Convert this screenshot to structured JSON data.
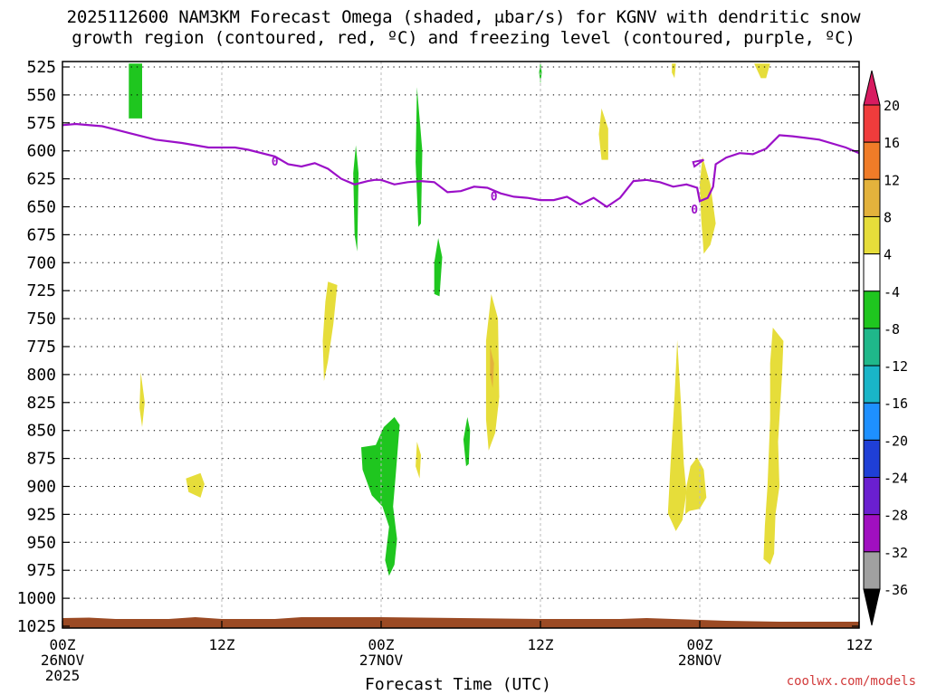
{
  "chart_data": {
    "type": "heatmap",
    "title_line1": "2025112600 NAM3KM Forecast Omega (shaded, μbar/s) for KGNV with dendritic snow",
    "title_line2": "growth region (contoured, red, ºC) and freezing level (contoured, purple, ºC)",
    "xlabel": "Forecast Time (UTC)",
    "credit": "coolwx.com/models",
    "y_axis": {
      "ticks": [
        525,
        550,
        575,
        600,
        625,
        650,
        675,
        700,
        725,
        750,
        775,
        800,
        825,
        850,
        875,
        900,
        925,
        950,
        975,
        1000,
        1025
      ],
      "range": [
        525,
        1025
      ],
      "unit": "hPa"
    },
    "x_axis": {
      "range_hours": [
        0,
        60
      ],
      "ticks": [
        {
          "h": 0,
          "line1": "00Z",
          "line2": "26NOV",
          "line3": "2025"
        },
        {
          "h": 12,
          "line1": "12Z",
          "line2": "",
          "line3": ""
        },
        {
          "h": 24,
          "line1": "00Z",
          "line2": "27NOV",
          "line3": ""
        },
        {
          "h": 36,
          "line1": "12Z",
          "line2": "",
          "line3": ""
        },
        {
          "h": 48,
          "line1": "00Z",
          "line2": "28NOV",
          "line3": ""
        },
        {
          "h": 60,
          "line1": "12Z",
          "line2": "",
          "line3": ""
        }
      ]
    },
    "colorbar": {
      "labels": [
        "20",
        "16",
        "12",
        "8",
        "4",
        "-4",
        "-8",
        "-12",
        "-16",
        "-20",
        "-24",
        "-28",
        "-32",
        "-36"
      ],
      "colors": [
        "#d81b60",
        "#f03c3c",
        "#f07c28",
        "#e3b23c",
        "#e6dd3a",
        "#ffffff",
        "#1fc61f",
        "#1fb88a",
        "#19b5c8",
        "#1e90ff",
        "#1f3fd6",
        "#6a1fd0",
        "#a00fc0",
        "#a0a0a0",
        "#000000"
      ]
    },
    "freezing_level": {
      "color": "#9b10c8",
      "label": "0",
      "points": [
        [
          0,
          577
        ],
        [
          1,
          576
        ],
        [
          3,
          578
        ],
        [
          5,
          584
        ],
        [
          7,
          590
        ],
        [
          9,
          593
        ],
        [
          11,
          597
        ],
        [
          13,
          597
        ],
        [
          14,
          599
        ],
        [
          16,
          605
        ],
        [
          17,
          612
        ],
        [
          18,
          614
        ],
        [
          19,
          611
        ],
        [
          20,
          616
        ],
        [
          21,
          625
        ],
        [
          22,
          630
        ],
        [
          23,
          627
        ],
        [
          23.5,
          626
        ],
        [
          24,
          626
        ],
        [
          25,
          630
        ],
        [
          26,
          628
        ],
        [
          27,
          627
        ],
        [
          28,
          628
        ],
        [
          29,
          637
        ],
        [
          30,
          636
        ],
        [
          31,
          632
        ],
        [
          32,
          633
        ],
        [
          33,
          638
        ],
        [
          34,
          641
        ],
        [
          35,
          642
        ],
        [
          36,
          644
        ],
        [
          37,
          644
        ],
        [
          38,
          641
        ],
        [
          39,
          648
        ],
        [
          40,
          642
        ],
        [
          41,
          650
        ],
        [
          42,
          642
        ],
        [
          43,
          627
        ],
        [
          44,
          626
        ],
        [
          45,
          628
        ],
        [
          46,
          632
        ],
        [
          47,
          630
        ],
        [
          47.8,
          633
        ],
        [
          48,
          645
        ],
        [
          48.6,
          642
        ],
        [
          49,
          632
        ],
        [
          49.2,
          612
        ],
        [
          50,
          606
        ],
        [
          51,
          602
        ],
        [
          52,
          603
        ],
        [
          53,
          598
        ],
        [
          54,
          586
        ],
        [
          55,
          587
        ],
        [
          57,
          590
        ],
        [
          59,
          597
        ],
        [
          60,
          602
        ]
      ],
      "labels_at": [
        [
          16,
          610
        ],
        [
          32.5,
          641
        ],
        [
          47.6,
          653
        ]
      ]
    },
    "omega_regions": [
      {
        "color": "#1fc61f",
        "value": -8,
        "points": [
          [
            5.0,
            522
          ],
          [
            6.0,
            522
          ],
          [
            6.0,
            571
          ],
          [
            5.0,
            571
          ]
        ]
      },
      {
        "color": "#1fc61f",
        "value": -8,
        "points": [
          [
            22.1,
            595
          ],
          [
            22.3,
            620
          ],
          [
            22.2,
            690
          ],
          [
            22.0,
            675
          ],
          [
            21.9,
            620
          ]
        ]
      },
      {
        "color": "#1fc61f",
        "value": -8,
        "points": [
          [
            26.7,
            543
          ],
          [
            27.1,
            600
          ],
          [
            27.0,
            665
          ],
          [
            26.8,
            668
          ],
          [
            26.6,
            610
          ]
        ]
      },
      {
        "color": "#1fc61f",
        "value": -8,
        "points": [
          [
            28.3,
            678
          ],
          [
            28.6,
            695
          ],
          [
            28.4,
            730
          ],
          [
            28.0,
            728
          ],
          [
            28.0,
            700
          ]
        ]
      },
      {
        "color": "#1fc61f",
        "value": -8,
        "points": [
          [
            22.5,
            865
          ],
          [
            23.6,
            863
          ],
          [
            24.2,
            847
          ],
          [
            25.0,
            838
          ],
          [
            25.4,
            845
          ],
          [
            25.1,
            890
          ],
          [
            24.9,
            918
          ],
          [
            25.2,
            947
          ],
          [
            25.0,
            970
          ],
          [
            24.6,
            980
          ],
          [
            24.3,
            966
          ],
          [
            24.6,
            936
          ],
          [
            24.1,
            918
          ],
          [
            23.3,
            908
          ],
          [
            22.6,
            885
          ]
        ]
      },
      {
        "color": "#1fc61f",
        "value": -8,
        "points": [
          [
            30.5,
            838
          ],
          [
            30.7,
            850
          ],
          [
            30.6,
            880
          ],
          [
            30.4,
            882
          ],
          [
            30.2,
            858
          ]
        ]
      },
      {
        "color": "#1fc61f",
        "value": -8,
        "points": [
          [
            36.0,
            520
          ],
          [
            36.1,
            530
          ],
          [
            36.0,
            540
          ],
          [
            35.9,
            530
          ]
        ]
      },
      {
        "color": "#e6dd3a",
        "value": 4,
        "points": [
          [
            20.0,
            717
          ],
          [
            20.7,
            720
          ],
          [
            20.4,
            755
          ],
          [
            20.0,
            788
          ],
          [
            19.7,
            806
          ],
          [
            19.6,
            770
          ],
          [
            19.8,
            735
          ]
        ]
      },
      {
        "color": "#e6dd3a",
        "value": 4,
        "points": [
          [
            5.9,
            798
          ],
          [
            6.2,
            825
          ],
          [
            6.0,
            847
          ],
          [
            5.8,
            830
          ]
        ]
      },
      {
        "color": "#e6dd3a",
        "value": 4,
        "points": [
          [
            9.3,
            893
          ],
          [
            10.4,
            888
          ],
          [
            10.7,
            898
          ],
          [
            10.4,
            910
          ],
          [
            9.5,
            905
          ]
        ]
      },
      {
        "color": "#e6dd3a",
        "value": 4,
        "points": [
          [
            26.7,
            860
          ],
          [
            27.0,
            872
          ],
          [
            26.9,
            893
          ],
          [
            26.6,
            882
          ]
        ]
      },
      {
        "color": "#e6dd3a",
        "value": 4,
        "points": [
          [
            32.3,
            728
          ],
          [
            32.8,
            750
          ],
          [
            32.9,
            820
          ],
          [
            32.6,
            852
          ],
          [
            32.1,
            868
          ],
          [
            31.9,
            840
          ],
          [
            31.9,
            770
          ]
        ]
      },
      {
        "color": "#e3b23c",
        "value": 8,
        "points": [
          [
            32.2,
            775
          ],
          [
            32.5,
            790
          ],
          [
            32.4,
            812
          ],
          [
            32.2,
            800
          ]
        ]
      },
      {
        "color": "#e6dd3a",
        "value": 4,
        "points": [
          [
            40.6,
            562
          ],
          [
            41.1,
            580
          ],
          [
            41.1,
            608
          ],
          [
            40.6,
            608
          ],
          [
            40.4,
            585
          ]
        ]
      },
      {
        "color": "#e6dd3a",
        "value": 4,
        "points": [
          [
            46.3,
            769
          ],
          [
            46.6,
            830
          ],
          [
            46.8,
            880
          ],
          [
            47.0,
            905
          ],
          [
            46.7,
            930
          ],
          [
            46.2,
            940
          ],
          [
            45.6,
            924
          ],
          [
            45.8,
            880
          ],
          [
            46.1,
            820
          ]
        ]
      },
      {
        "color": "#e6dd3a",
        "value": 4,
        "points": [
          [
            47.3,
            882
          ],
          [
            47.8,
            874
          ],
          [
            48.3,
            885
          ],
          [
            48.5,
            910
          ],
          [
            48.0,
            920
          ],
          [
            47.2,
            922
          ],
          [
            46.9,
            925
          ],
          [
            47.0,
            900
          ]
        ]
      },
      {
        "color": "#e6dd3a",
        "value": 4,
        "points": [
          [
            48.2,
            605
          ],
          [
            48.8,
            630
          ],
          [
            49.2,
            665
          ],
          [
            48.8,
            684
          ],
          [
            48.3,
            692
          ],
          [
            48.1,
            660
          ],
          [
            48.0,
            630
          ]
        ]
      },
      {
        "color": "#e6dd3a",
        "value": 4,
        "points": [
          [
            53.5,
            758
          ],
          [
            54.3,
            770
          ],
          [
            54.2,
            800
          ],
          [
            53.9,
            860
          ],
          [
            54.0,
            900
          ],
          [
            53.7,
            925
          ],
          [
            53.6,
            960
          ],
          [
            53.3,
            970
          ],
          [
            52.8,
            965
          ],
          [
            52.9,
            935
          ],
          [
            53.1,
            900
          ],
          [
            53.3,
            840
          ],
          [
            53.3,
            790
          ]
        ]
      },
      {
        "color": "#e6dd3a",
        "value": 4,
        "points": [
          [
            45.9,
            522
          ],
          [
            46.2,
            522
          ],
          [
            46.1,
            535
          ],
          [
            45.9,
            530
          ]
        ]
      },
      {
        "color": "#e6dd3a",
        "value": 4,
        "points": [
          [
            52.1,
            522
          ],
          [
            53.3,
            522
          ],
          [
            53.0,
            535
          ],
          [
            52.6,
            535
          ]
        ]
      }
    ],
    "terrain_color": "#9b4a24",
    "grid": "dotted"
  }
}
